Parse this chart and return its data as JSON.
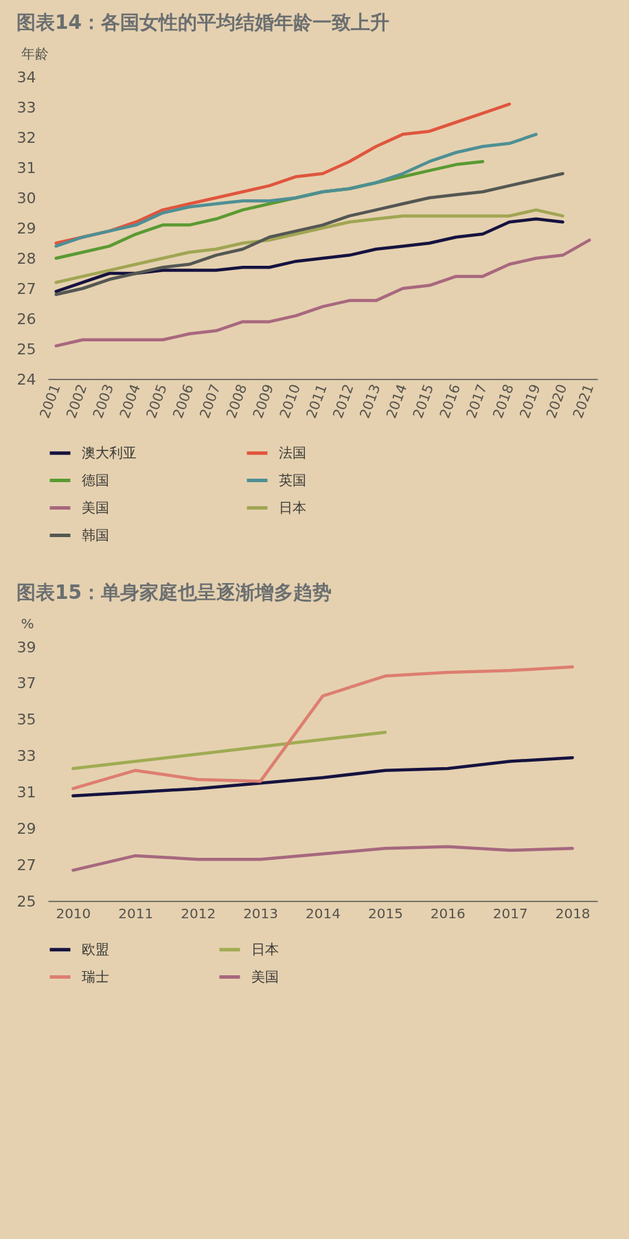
{
  "chart_data": [
    {
      "type": "line",
      "title": "图表14：各国女性的平均结婚年龄一致上升",
      "ylabel": "年龄",
      "categories": [
        "2001",
        "2002",
        "2003",
        "2004",
        "2005",
        "2006",
        "2007",
        "2008",
        "2009",
        "2010",
        "2011",
        "2012",
        "2013",
        "2014",
        "2015",
        "2016",
        "2017",
        "2018",
        "2019",
        "2020",
        "2021"
      ],
      "series": [
        {
          "name": "澳大利亚",
          "color": "#15123f",
          "values": [
            26.9,
            27.2,
            27.5,
            27.5,
            27.6,
            27.6,
            27.6,
            27.7,
            27.7,
            27.9,
            28.0,
            28.1,
            28.3,
            28.4,
            28.5,
            28.7,
            28.8,
            29.2,
            29.3,
            29.2,
            null
          ]
        },
        {
          "name": "法国",
          "color": "#e0553d",
          "values": [
            28.5,
            28.7,
            28.9,
            29.2,
            29.6,
            29.8,
            30.0,
            30.2,
            30.4,
            30.7,
            30.8,
            31.2,
            31.7,
            32.1,
            32.2,
            32.5,
            32.8,
            33.1,
            null,
            null,
            null
          ]
        },
        {
          "name": "德国",
          "color": "#5a9a32",
          "values": [
            28.0,
            28.2,
            28.4,
            28.8,
            29.1,
            29.1,
            29.3,
            29.6,
            29.8,
            30.0,
            30.2,
            30.3,
            30.5,
            30.7,
            30.9,
            31.1,
            31.2,
            null,
            null,
            null,
            null
          ]
        },
        {
          "name": "英国",
          "color": "#4e8f94",
          "values": [
            28.4,
            28.7,
            28.9,
            29.1,
            29.5,
            29.7,
            29.8,
            29.9,
            29.9,
            30.0,
            30.2,
            30.3,
            30.5,
            30.8,
            31.2,
            31.5,
            31.7,
            31.8,
            32.1,
            null,
            null
          ]
        },
        {
          "name": "美国",
          "color": "#a8687e",
          "values": [
            25.1,
            25.3,
            25.3,
            25.3,
            25.3,
            25.5,
            25.6,
            25.9,
            25.9,
            26.1,
            26.4,
            26.6,
            26.6,
            27.0,
            27.1,
            27.4,
            27.4,
            27.8,
            28.0,
            28.1,
            28.6
          ]
        },
        {
          "name": "日本",
          "color": "#a0a552",
          "values": [
            27.2,
            27.4,
            27.6,
            27.8,
            28.0,
            28.2,
            28.3,
            28.5,
            28.6,
            28.8,
            29.0,
            29.2,
            29.3,
            29.4,
            29.4,
            29.4,
            29.4,
            29.4,
            29.6,
            29.4,
            null
          ]
        },
        {
          "name": "韩国",
          "color": "#545753",
          "values": [
            26.8,
            27.0,
            27.3,
            27.5,
            27.7,
            27.8,
            28.1,
            28.3,
            28.7,
            28.9,
            29.1,
            29.4,
            29.6,
            29.8,
            30.0,
            30.1,
            30.2,
            30.4,
            30.6,
            30.8,
            null
          ]
        }
      ],
      "ylim": [
        24,
        34
      ],
      "yticks": [
        24,
        25,
        26,
        27,
        28,
        29,
        30,
        31,
        32,
        33,
        34
      ],
      "grid": false,
      "legend": "bottom"
    },
    {
      "type": "line",
      "title": "图表15：单身家庭也呈逐渐增多趋势",
      "ylabel": "%",
      "categories": [
        "2010",
        "2011",
        "2012",
        "2013",
        "2014",
        "2015",
        "2016",
        "2017",
        "2018"
      ],
      "series": [
        {
          "name": "欧盟",
          "color": "#15123f",
          "values": [
            30.8,
            31.0,
            31.2,
            31.5,
            31.8,
            32.2,
            32.3,
            32.7,
            32.9
          ]
        },
        {
          "name": "日本",
          "color": "#a0ab52",
          "values": [
            32.3,
            32.7,
            33.1,
            33.5,
            33.9,
            34.3,
            null,
            null,
            null
          ]
        },
        {
          "name": "瑞士",
          "color": "#dd7e70",
          "values": [
            31.2,
            32.2,
            31.7,
            31.6,
            36.3,
            37.4,
            37.6,
            37.7,
            37.9
          ]
        },
        {
          "name": "美国",
          "color": "#a6687e",
          "values": [
            26.7,
            27.5,
            27.3,
            27.3,
            27.6,
            27.9,
            28.0,
            27.8,
            27.9
          ]
        }
      ],
      "ylim": [
        25,
        39
      ],
      "yticks": [
        25,
        27,
        29,
        31,
        33,
        35,
        37,
        39
      ],
      "grid": false,
      "legend": "bottom"
    }
  ]
}
